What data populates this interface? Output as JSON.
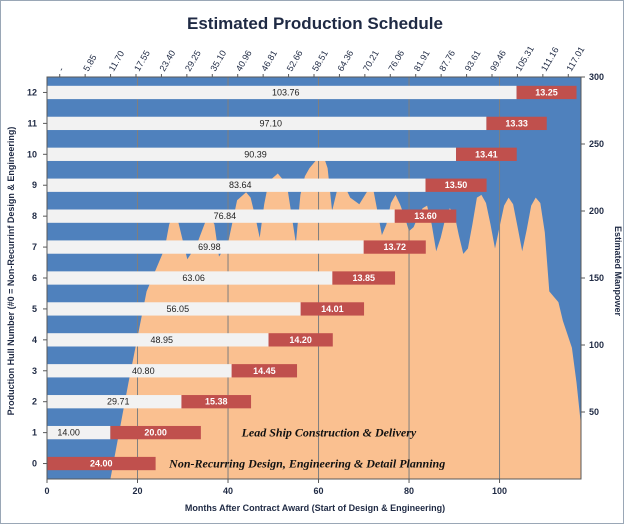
{
  "chart_data": {
    "type": "bar",
    "title": "Estimated Production Schedule",
    "xlabel": "Months After Contract Award (Start of Design & Engineering)",
    "ylabel": "Production Hull Number (#0 = Non-Recurrinf Design & Engineering)",
    "y2label": "Estimated Manpower",
    "xlim": [
      0,
      118
    ],
    "ylim": [
      -0.5,
      12.5
    ],
    "y2lim": [
      0,
      300
    ],
    "x_ticks": [
      "0",
      "20",
      "40",
      "60",
      "80",
      "100"
    ],
    "top_ticks": [
      "-",
      "5.85",
      "11.70",
      "17.55",
      "23.40",
      "29.25",
      "35.10",
      "40.96",
      "46.81",
      "52.66",
      "58.51",
      "64.36",
      "70.21",
      "76.06",
      "81.91",
      "87.76",
      "93.61",
      "99.46",
      "105.31",
      "111.16",
      "117.01"
    ],
    "y_ticks": [
      "0",
      "1",
      "2",
      "3",
      "4",
      "5",
      "6",
      "7",
      "8",
      "9",
      "10",
      "11",
      "12"
    ],
    "y2_ticks": [
      "50",
      "100",
      "150",
      "200",
      "250",
      "300"
    ],
    "categories": [
      "0",
      "1",
      "2",
      "3",
      "4",
      "5",
      "6",
      "7",
      "8",
      "9",
      "10",
      "11",
      "12"
    ],
    "series": [
      {
        "values": [
          0,
          14.0,
          29.71,
          40.8,
          48.95,
          56.05,
          63.06,
          69.98,
          76.84,
          83.64,
          90.39,
          97.1,
          103.76
        ],
        "labels": [
          "",
          "14.00",
          "29.71",
          "40.80",
          "48.95",
          "56.05",
          "63.06",
          "69.98",
          "76.84",
          "83.64",
          "90.39",
          "97.10",
          "103.76"
        ],
        "color": "#f2f2f2"
      },
      {
        "values": [
          24.0,
          20.0,
          15.38,
          14.45,
          14.2,
          14.01,
          13.85,
          13.72,
          13.6,
          13.5,
          13.41,
          13.33,
          13.25
        ],
        "labels": [
          "24.00",
          "20.00",
          "15.38",
          "14.45",
          "14.20",
          "14.01",
          "13.85",
          "13.72",
          "13.60",
          "13.50",
          "13.41",
          "13.33",
          "13.25"
        ],
        "color": "#c0504d"
      }
    ],
    "manpower": {
      "x": [
        14,
        18,
        22,
        26,
        27,
        28,
        29,
        31,
        33,
        35,
        36,
        37,
        38,
        40,
        42,
        44,
        45,
        46,
        47,
        48,
        49,
        51,
        53,
        55,
        56,
        57,
        58,
        60,
        61,
        62,
        63,
        64,
        65,
        67,
        69,
        71,
        72,
        73,
        74,
        75,
        76,
        77,
        78,
        79,
        80,
        81,
        82,
        83,
        84,
        85,
        86,
        87,
        88,
        89,
        90,
        91,
        92,
        93,
        94,
        95,
        96,
        97,
        98,
        99,
        100,
        101,
        102,
        103,
        104,
        105,
        106,
        107,
        108,
        109,
        110,
        111,
        112,
        113,
        114,
        115,
        116,
        117,
        118
      ],
      "y": [
        0,
        72,
        140,
        172,
        190,
        198,
        192,
        164,
        174,
        192,
        196,
        190,
        166,
        176,
        208,
        214,
        210,
        196,
        180,
        205,
        222,
        228,
        220,
        176,
        212,
        226,
        232,
        240,
        242,
        232,
        200,
        214,
        224,
        210,
        205,
        216,
        218,
        200,
        182,
        190,
        206,
        212,
        205,
        196,
        185,
        188,
        196,
        202,
        204,
        190,
        170,
        180,
        194,
        202,
        198,
        182,
        168,
        172,
        190,
        210,
        212,
        206,
        190,
        172,
        188,
        204,
        210,
        205,
        188,
        170,
        186,
        204,
        210,
        206,
        184,
        140,
        136,
        132,
        118,
        108,
        98,
        72,
        40
      ],
      "color": "#fac090"
    },
    "plot_bg": "#4f81bd",
    "gridlines": true,
    "legend": "none",
    "annotations": [
      {
        "text": "Lead Ship Construction & Delivery"
      },
      {
        "text": "Non-Recurring Design, Engineering & Detail Planning"
      }
    ]
  }
}
